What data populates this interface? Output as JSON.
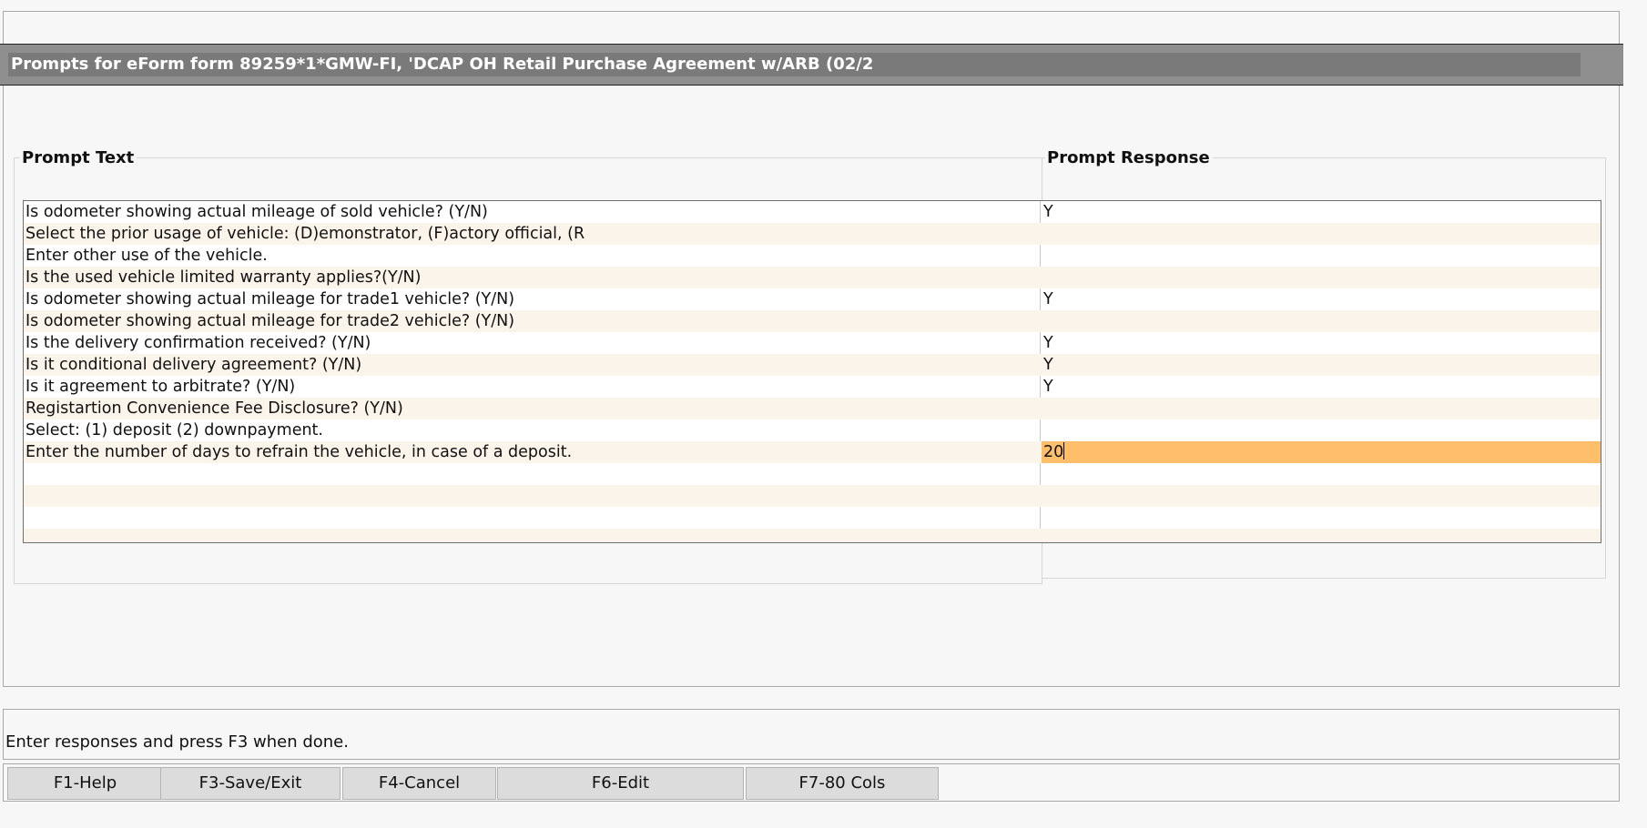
{
  "window": {
    "title": "Prompts for eForm form 89259*1*GMW-FI, 'DCAP OH Retail Purchase Agreement w/ARB (02/2"
  },
  "columns": {
    "prompt_text": "Prompt Text",
    "prompt_response": "Prompt Response"
  },
  "rows": [
    {
      "text": "Is odometer showing actual mileage of sold vehicle? (Y/N)",
      "response": "Y"
    },
    {
      "text": "Select the prior usage of vehicle: (D)emonstrator, (F)actory official, (R",
      "response": ""
    },
    {
      "text": "Enter other use of the vehicle.",
      "response": ""
    },
    {
      "text": "Is the used vehicle limited warranty applies?(Y/N)",
      "response": ""
    },
    {
      "text": "Is odometer showing actual mileage for trade1 vehicle? (Y/N)",
      "response": "Y"
    },
    {
      "text": "Is odometer showing actual mileage for trade2 vehicle? (Y/N)",
      "response": ""
    },
    {
      "text": "Is the delivery confirmation received? (Y/N)",
      "response": "Y"
    },
    {
      "text": "Is it conditional delivery agreement? (Y/N)",
      "response": "Y"
    },
    {
      "text": "Is it agreement to arbitrate? (Y/N)",
      "response": "Y"
    },
    {
      "text": "Registartion Convenience Fee Disclosure? (Y/N)",
      "response": ""
    },
    {
      "text": "Select: (1) deposit (2) downpayment.",
      "response": ""
    },
    {
      "text": "Enter the number of days to refrain the vehicle, in case of a deposit.",
      "response": "20"
    },
    {
      "text": "",
      "response": ""
    },
    {
      "text": "",
      "response": ""
    },
    {
      "text": "",
      "response": ""
    },
    {
      "text": "",
      "response": ""
    }
  ],
  "active_row": 11,
  "status": {
    "message": "Enter responses and press F3 when done."
  },
  "function_keys": [
    {
      "name": "f1-help-button",
      "label": "F1-Help"
    },
    {
      "name": "f3-save-exit-button",
      "label": "F3-Save/Exit"
    },
    {
      "name": "f4-cancel-button",
      "label": "F4-Cancel"
    },
    {
      "name": "f6-edit-button",
      "label": "F6-Edit"
    },
    {
      "name": "f7-80-cols-button",
      "label": "F7-80 Cols"
    }
  ],
  "colors": {
    "active_response": "#ffbe6a",
    "alt_row": "#fbf4ea",
    "title_bar": "#7a7a7a"
  }
}
